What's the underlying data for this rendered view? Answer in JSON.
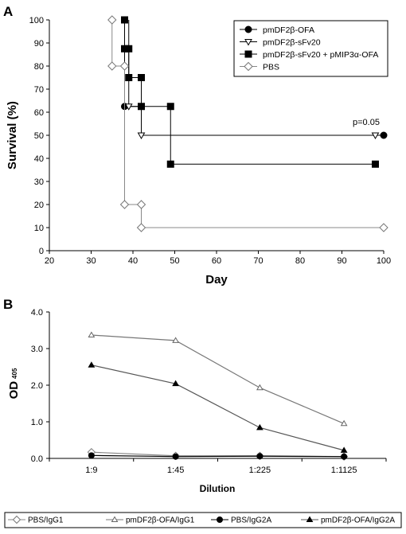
{
  "chart_data": [
    {
      "panel_label": "A",
      "type": "line",
      "step": true,
      "xlabel": "Day",
      "ylabel": "Survival (%)",
      "xlim": [
        20,
        100
      ],
      "ylim": [
        0,
        100
      ],
      "x_ticks": [
        "20",
        "30",
        "40",
        "50",
        "60",
        "70",
        "80",
        "90",
        "100"
      ],
      "y_ticks": [
        "0",
        "10",
        "20",
        "30",
        "40",
        "50",
        "60",
        "70",
        "80",
        "90",
        "100"
      ],
      "legend_position": "top-right",
      "annotation": {
        "text": "p=0.05",
        "x": 94,
        "y": 53
      },
      "series": [
        {
          "name": "pmDF2β-OFA",
          "marker": "circle-filled",
          "points": [
            [
              38,
              62.5
            ],
            [
              100,
              50
            ]
          ],
          "path": [
            [
              38,
              100
            ],
            [
              38,
              62.5
            ],
            [
              42,
              62.5
            ],
            [
              42,
              50
            ],
            [
              100,
              50
            ]
          ]
        },
        {
          "name": "pmDF2β-sFv20",
          "marker": "triangle-down-open",
          "points": [
            [
              39,
              62.5
            ],
            [
              42,
              50
            ],
            [
              98,
              50
            ]
          ],
          "path": [
            [
              39,
              100
            ],
            [
              39,
              62.5
            ],
            [
              42,
              62.5
            ],
            [
              42,
              50
            ],
            [
              100,
              50
            ]
          ]
        },
        {
          "name": "pmDF2β-sFv20 + pMIP3α-OFA",
          "marker": "square-filled",
          "points": [
            [
              38,
              100
            ],
            [
              38,
              87.5
            ],
            [
              39,
              87.5
            ],
            [
              39,
              75
            ],
            [
              42,
              75
            ],
            [
              42,
              62.5
            ],
            [
              49,
              62.5
            ],
            [
              49,
              37.5
            ],
            [
              98,
              37.5
            ]
          ],
          "path": [
            [
              38,
              100
            ],
            [
              38,
              87.5
            ],
            [
              39,
              87.5
            ],
            [
              39,
              75
            ],
            [
              42,
              75
            ],
            [
              42,
              62.5
            ],
            [
              49,
              62.5
            ],
            [
              49,
              37.5
            ],
            [
              98,
              37.5
            ]
          ]
        },
        {
          "name": "PBS",
          "marker": "diamond-open",
          "points": [
            [
              35,
              100
            ],
            [
              35,
              80
            ],
            [
              38,
              80
            ],
            [
              38,
              20
            ],
            [
              42,
              20
            ],
            [
              42,
              10
            ],
            [
              100,
              10
            ]
          ],
          "path": [
            [
              35,
              100
            ],
            [
              35,
              80
            ],
            [
              38,
              80
            ],
            [
              38,
              20
            ],
            [
              42,
              20
            ],
            [
              42,
              10
            ],
            [
              100,
              10
            ]
          ]
        }
      ]
    },
    {
      "panel_label": "B",
      "type": "line",
      "xlabel": "Dilution",
      "ylabel": "OD",
      "ylabel_sub": "405",
      "categories": [
        "1:9",
        "1:45",
        "1:225",
        "1:1125"
      ],
      "ylim": [
        0,
        4.0
      ],
      "y_ticks": [
        "0.0",
        "1.0",
        "2.0",
        "3.0",
        "4.0"
      ],
      "legend_position": "bottom",
      "series": [
        {
          "name": "PBS/IgG1",
          "marker": "diamond-open",
          "values": [
            0.17,
            0.07,
            0.07,
            0.05
          ]
        },
        {
          "name": "pmDF2β-OFA/IgG1",
          "marker": "triangle-open",
          "values": [
            3.37,
            3.22,
            1.93,
            0.95
          ]
        },
        {
          "name": "PBS/IgG2A",
          "marker": "circle-filled",
          "values": [
            0.08,
            0.05,
            0.06,
            0.05
          ]
        },
        {
          "name": "pmDF2β-OFA/IgG2A",
          "marker": "triangle-filled",
          "values": [
            2.55,
            2.04,
            0.84,
            0.22
          ]
        }
      ]
    }
  ]
}
